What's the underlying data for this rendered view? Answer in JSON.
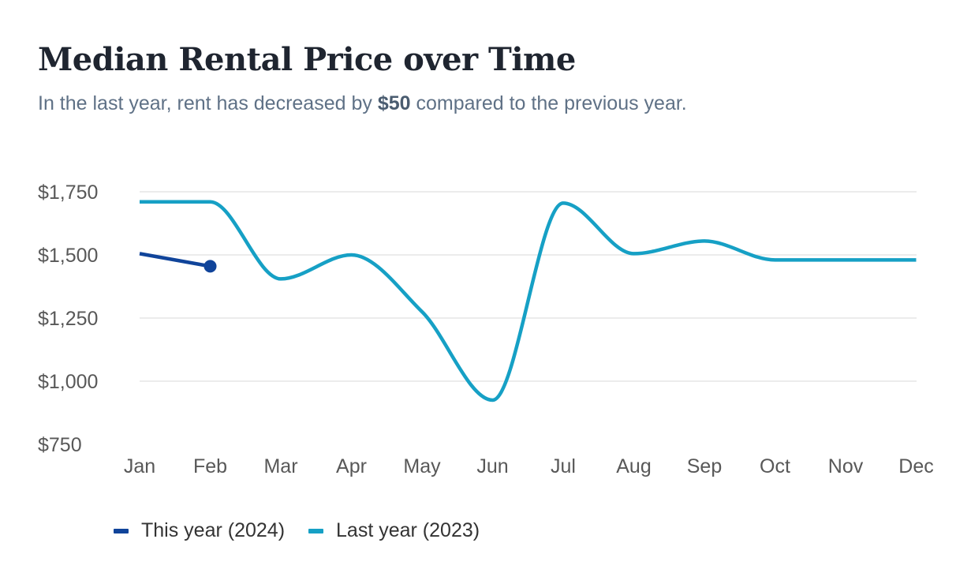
{
  "header": {
    "title": "Median Rental Price over Time",
    "subtitle_before": "In the last year, rent has decreased by",
    "subtitle_highlight": "$50",
    "subtitle_after": "compared to the previous year."
  },
  "colors": {
    "this_year": "#10449a",
    "last_year": "#16a0c5",
    "grid": "#e6e6e6",
    "axis_text": "#585858"
  },
  "chart_data": {
    "type": "line",
    "title": "Median Rental Price over Time",
    "xlabel": "",
    "ylabel": "",
    "categories": [
      "Jan",
      "Feb",
      "Mar",
      "Apr",
      "May",
      "Jun",
      "Jul",
      "Aug",
      "Sep",
      "Oct",
      "Nov",
      "Dec"
    ],
    "y_ticks": [
      "$750",
      "$1,000",
      "$1,250",
      "$1,500",
      "$1,750"
    ],
    "y_tick_values": [
      750,
      1000,
      1250,
      1500,
      1750
    ],
    "ylim": [
      750,
      1750
    ],
    "grid": true,
    "legend_position": "bottom-left",
    "series": [
      {
        "name": "This year (2024)",
        "values": [
          1505,
          1455,
          null,
          null,
          null,
          null,
          null,
          null,
          null,
          null,
          null,
          null
        ],
        "end_marker": true
      },
      {
        "name": "Last year (2023)",
        "values": [
          1710,
          1710,
          1405,
          1500,
          1275,
          925,
          1705,
          1505,
          1555,
          1480,
          1480,
          1480
        ]
      }
    ]
  }
}
